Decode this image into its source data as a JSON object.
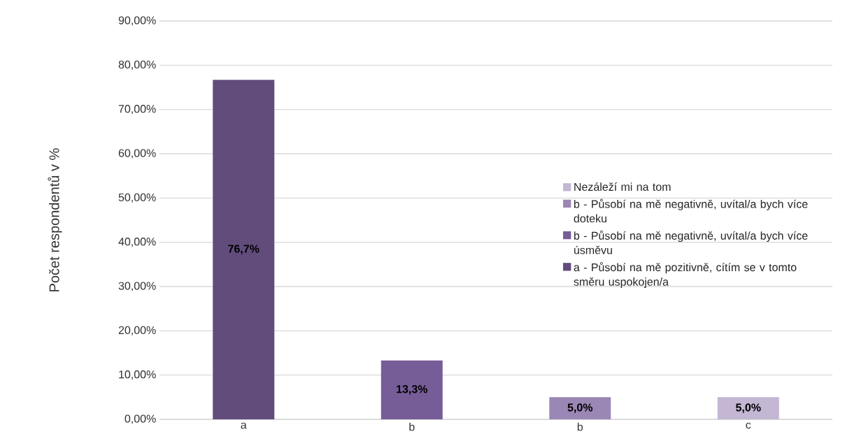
{
  "chart_data": {
    "type": "bar",
    "ylabel": "Počet respondentů v %",
    "categories": [
      "a",
      "b",
      "b",
      "c"
    ],
    "series": [
      {
        "name": "a - Působí na mě pozitivně, cítím se v tomto směru uspokojen/a",
        "color": "#624c7c",
        "values": [
          76.7,
          null,
          null,
          null
        ],
        "value_labels": [
          "76,7%",
          null,
          null,
          null
        ]
      },
      {
        "name": "b - Působí na mě negativně, uvítal/a bych více úsměvu",
        "color": "#775d98",
        "values": [
          null,
          13.3,
          null,
          null
        ],
        "value_labels": [
          null,
          "13,3%",
          null,
          null
        ]
      },
      {
        "name": "b - Působí na mě negativně, uvítal/a bych více doteku",
        "color": "#9b87b5",
        "values": [
          null,
          null,
          5.0,
          null
        ],
        "value_labels": [
          null,
          null,
          "5,0%",
          null
        ]
      },
      {
        "name": "Nezáleží mi na tom",
        "color": "#c3b7d3",
        "values": [
          null,
          null,
          null,
          5.0
        ],
        "value_labels": [
          null,
          null,
          null,
          "5,0%"
        ]
      }
    ],
    "ylim": [
      0,
      90
    ],
    "yticks": [
      {
        "value": 0,
        "label": "0,00%"
      },
      {
        "value": 10,
        "label": "10,00%"
      },
      {
        "value": 20,
        "label": "20,00%"
      },
      {
        "value": 30,
        "label": "30,00%"
      },
      {
        "value": 40,
        "label": "40,00%"
      },
      {
        "value": 50,
        "label": "50,00%"
      },
      {
        "value": 60,
        "label": "60,00%"
      },
      {
        "value": 70,
        "label": "70,00%"
      },
      {
        "value": 80,
        "label": "80,00%"
      },
      {
        "value": 90,
        "label": "90,00%"
      }
    ],
    "grid": "y",
    "legend": "right"
  }
}
